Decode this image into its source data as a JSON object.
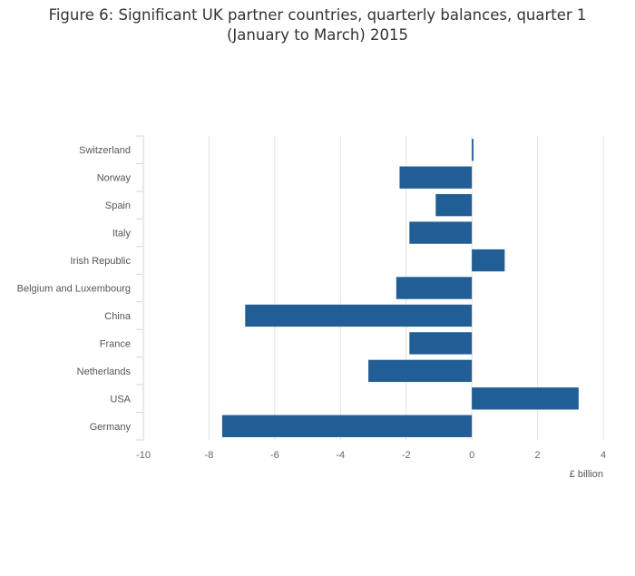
{
  "title_line1": "Figure 6: Significant UK partner countries, quarterly balances, quarter 1",
  "title_line2": "(January to March) 2015",
  "chart_data": {
    "type": "bar",
    "orientation": "horizontal",
    "title": "Figure 6: Significant UK partner countries, quarterly balances, quarter 1 (January to March) 2015",
    "xlabel": "£ billion",
    "ylabel": "",
    "xlim": [
      -10,
      4
    ],
    "xticks": [
      -10,
      -8,
      -6,
      -4,
      -2,
      0,
      2,
      4
    ],
    "grid": true,
    "bar_color": "#215e96",
    "categories": [
      "Switzerland",
      "Norway",
      "Spain",
      "Italy",
      "Irish Republic",
      "Belgium and Luxembourg",
      "China",
      "France",
      "Netherlands",
      "USA",
      "Germany"
    ],
    "values": [
      0.05,
      -2.2,
      -1.1,
      -1.9,
      1.0,
      -2.3,
      -6.9,
      -1.9,
      -3.15,
      3.25,
      -7.6
    ]
  }
}
